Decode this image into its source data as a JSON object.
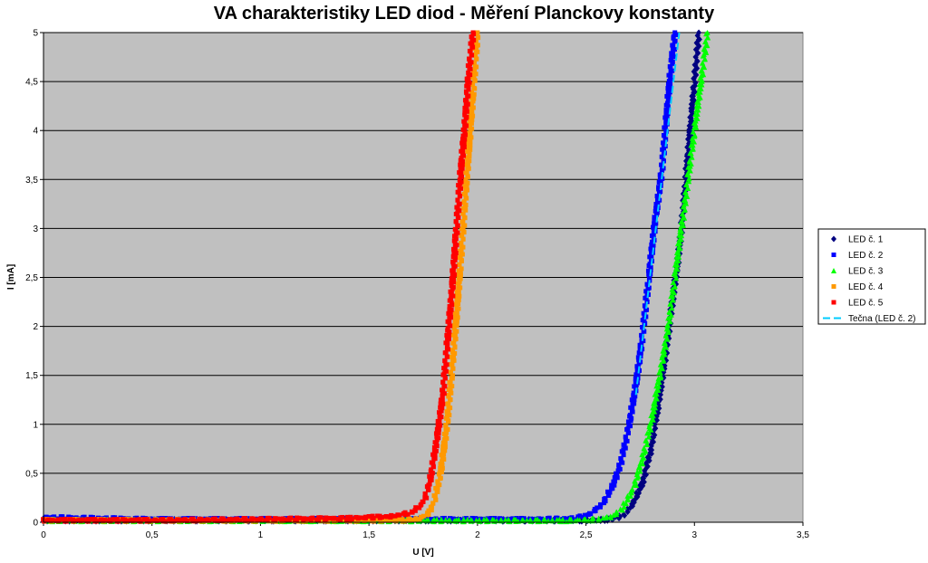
{
  "chart_data": {
    "type": "scatter",
    "title": "VA charakteristiky LED diod - Měření Planckovy konstanty",
    "xlabel": "U [V]",
    "ylabel": "I [mA]",
    "xlim": [
      0,
      3.5
    ],
    "ylim": [
      0,
      5
    ],
    "x_ticks": [
      "0",
      "0,5",
      "1",
      "1,5",
      "2",
      "2,5",
      "3",
      "3,5"
    ],
    "y_ticks": [
      "0",
      "0,5",
      "1",
      "1,5",
      "2",
      "2,5",
      "3",
      "3,5",
      "4",
      "4,5",
      "5"
    ],
    "grid": "horizontal",
    "plot_background": "#c0c0c0",
    "legend_position": "right",
    "series": [
      {
        "name": "LED č. 1",
        "marker": "diamond",
        "color": "#000080",
        "points": [
          [
            0.0,
            0.02
          ],
          [
            0.5,
            0.02
          ],
          [
            1.0,
            0.02
          ],
          [
            1.5,
            0.02
          ],
          [
            2.0,
            0.02
          ],
          [
            2.4,
            0.02
          ],
          [
            2.55,
            0.02
          ],
          [
            2.62,
            0.03
          ],
          [
            2.68,
            0.08
          ],
          [
            2.72,
            0.2
          ],
          [
            2.76,
            0.4
          ],
          [
            2.8,
            0.75
          ],
          [
            2.83,
            1.15
          ],
          [
            2.86,
            1.6
          ],
          [
            2.89,
            2.1
          ],
          [
            2.92,
            2.6
          ],
          [
            2.94,
            3.0
          ],
          [
            2.96,
            3.5
          ],
          [
            2.98,
            4.0
          ],
          [
            3.0,
            4.5
          ],
          [
            3.02,
            5.0
          ]
        ]
      },
      {
        "name": "LED č. 2",
        "marker": "square",
        "color": "#0000ff",
        "points": [
          [
            0.0,
            0.05
          ],
          [
            0.5,
            0.03
          ],
          [
            1.0,
            0.03
          ],
          [
            1.5,
            0.03
          ],
          [
            2.0,
            0.03
          ],
          [
            2.3,
            0.03
          ],
          [
            2.45,
            0.04
          ],
          [
            2.52,
            0.08
          ],
          [
            2.58,
            0.2
          ],
          [
            2.62,
            0.35
          ],
          [
            2.66,
            0.6
          ],
          [
            2.7,
            1.0
          ],
          [
            2.73,
            1.4
          ],
          [
            2.76,
            1.9
          ],
          [
            2.79,
            2.5
          ],
          [
            2.82,
            3.1
          ],
          [
            2.85,
            3.6
          ],
          [
            2.87,
            4.1
          ],
          [
            2.89,
            4.6
          ],
          [
            2.91,
            5.0
          ]
        ]
      },
      {
        "name": "LED č. 3",
        "marker": "triangle",
        "color": "#00ff00",
        "points": [
          [
            0.0,
            0.02
          ],
          [
            0.5,
            0.02
          ],
          [
            1.0,
            0.02
          ],
          [
            1.5,
            0.02
          ],
          [
            2.0,
            0.02
          ],
          [
            2.4,
            0.02
          ],
          [
            2.55,
            0.03
          ],
          [
            2.62,
            0.06
          ],
          [
            2.67,
            0.15
          ],
          [
            2.72,
            0.35
          ],
          [
            2.76,
            0.65
          ],
          [
            2.8,
            1.0
          ],
          [
            2.84,
            1.5
          ],
          [
            2.88,
            2.0
          ],
          [
            2.91,
            2.5
          ],
          [
            2.94,
            3.0
          ],
          [
            2.97,
            3.5
          ],
          [
            3.0,
            4.0
          ],
          [
            3.03,
            4.5
          ],
          [
            3.06,
            5.0
          ]
        ]
      },
      {
        "name": "LED č. 4",
        "marker": "square",
        "color": "#ff9900",
        "points": [
          [
            0.0,
            0.02
          ],
          [
            0.5,
            0.02
          ],
          [
            1.0,
            0.02
          ],
          [
            1.5,
            0.02
          ],
          [
            1.65,
            0.02
          ],
          [
            1.72,
            0.03
          ],
          [
            1.77,
            0.08
          ],
          [
            1.8,
            0.2
          ],
          [
            1.83,
            0.5
          ],
          [
            1.86,
            1.0
          ],
          [
            1.88,
            1.5
          ],
          [
            1.9,
            2.0
          ],
          [
            1.92,
            2.6
          ],
          [
            1.94,
            3.2
          ],
          [
            1.96,
            3.8
          ],
          [
            1.98,
            4.4
          ],
          [
            2.0,
            5.0
          ]
        ]
      },
      {
        "name": "LED č. 5",
        "marker": "square",
        "color": "#ff0000",
        "points": [
          [
            0.0,
            0.02
          ],
          [
            0.5,
            0.02
          ],
          [
            1.0,
            0.03
          ],
          [
            1.4,
            0.04
          ],
          [
            1.6,
            0.06
          ],
          [
            1.7,
            0.1
          ],
          [
            1.75,
            0.2
          ],
          [
            1.78,
            0.4
          ],
          [
            1.81,
            0.8
          ],
          [
            1.84,
            1.3
          ],
          [
            1.86,
            1.8
          ],
          [
            1.88,
            2.3
          ],
          [
            1.9,
            2.9
          ],
          [
            1.92,
            3.5
          ],
          [
            1.94,
            4.0
          ],
          [
            1.96,
            4.6
          ],
          [
            1.98,
            5.0
          ]
        ]
      },
      {
        "name": "Tečna (LED č. 2)",
        "marker": "dashed-line",
        "color": "#00ccff",
        "points": [
          [
            2.73,
            1.3
          ],
          [
            2.93,
            5.0
          ]
        ]
      }
    ]
  }
}
